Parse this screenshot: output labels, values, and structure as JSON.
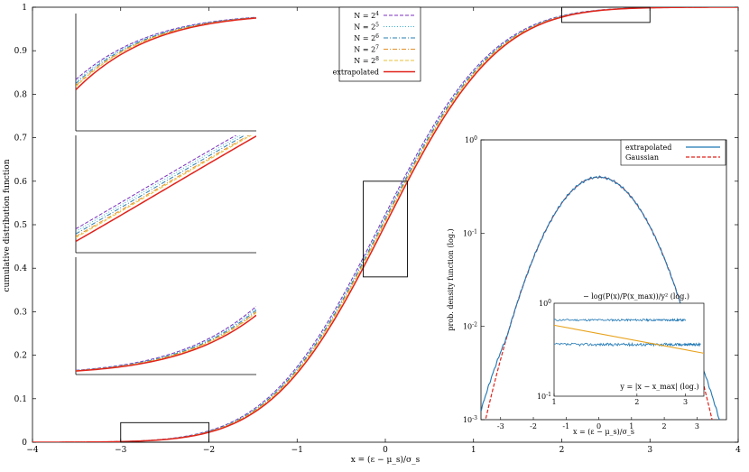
{
  "chart_data": [
    {
      "type": "line",
      "xlabel": "x = (ε − μ_s)/σ_s",
      "ylabel": "cumulative distribution function",
      "xlim": [
        -4,
        4
      ],
      "ylim": [
        0,
        1
      ],
      "xticks": [
        "−4",
        "−3",
        "−2",
        "−1",
        "0",
        "1",
        "2",
        "3",
        "4"
      ],
      "yticks": [
        "0",
        "0.1",
        "0.2",
        "0.3",
        "0.4",
        "0.5",
        "0.6",
        "0.7",
        "0.8",
        "0.9",
        "1"
      ],
      "grid": false,
      "legend_placement": "top-center",
      "series": [
        {
          "name": "N = 2^4",
          "color": "#7b2fbf",
          "style": "dashed",
          "shift": 0.1
        },
        {
          "name": "N = 2^5",
          "color": "#3fb1d6",
          "style": "dotted",
          "shift": 0.08
        },
        {
          "name": "N = 2^6",
          "color": "#2a7fb0",
          "style": "dashdot",
          "shift": 0.06
        },
        {
          "name": "N = 2^7",
          "color": "#e3902b",
          "style": "dashdot",
          "shift": 0.04
        },
        {
          "name": "N = 2^8",
          "color": "#e8c13a",
          "style": "dashed",
          "shift": 0.03
        },
        {
          "name": "extrapolated",
          "color": "#e0231b",
          "style": "solid",
          "shift": 0.0
        }
      ],
      "zoom_boxes": [
        {
          "x": [
            -3,
            -2
          ],
          "y": [
            0,
            0.045
          ]
        },
        {
          "x": [
            -0.25,
            0.25
          ],
          "y": [
            0.38,
            0.6
          ]
        },
        {
          "x": [
            2,
            3
          ],
          "y": [
            0.965,
            1.0
          ]
        }
      ]
    },
    {
      "type": "line",
      "ylabel": "prob. density function (log.)",
      "xlabel": "x = (ε − μ_s)/σ_s",
      "yscale": "log",
      "ylim": [
        0.001,
        1
      ],
      "xticks": [
        "-3",
        "-2",
        "-1",
        "0",
        "1",
        "2",
        "3"
      ],
      "yticks": [
        "10^-3",
        "10^-2",
        "10^-1",
        "10^0"
      ],
      "legend_placement": "top-right",
      "series": [
        {
          "name": "extrapolated",
          "color": "#1f77b4",
          "style": "solid"
        },
        {
          "name": "Gaussian",
          "color": "#e0231b",
          "style": "dashed"
        }
      ]
    },
    {
      "type": "line",
      "title": "− log(P(x)/P(x_max))/y² (log.)",
      "xlabel": "y = |x − x_max| (log.)",
      "xscale": "log",
      "yscale": "log",
      "xticks": [
        "1",
        "2",
        "3"
      ],
      "yticks": [
        "10^-1",
        "10^0"
      ],
      "series": [
        {
          "color": "#1f77b4",
          "style": "solid"
        },
        {
          "color": "#1f77b4",
          "style": "solid"
        },
        {
          "color": "#e8a21a",
          "style": "solid"
        }
      ]
    }
  ]
}
